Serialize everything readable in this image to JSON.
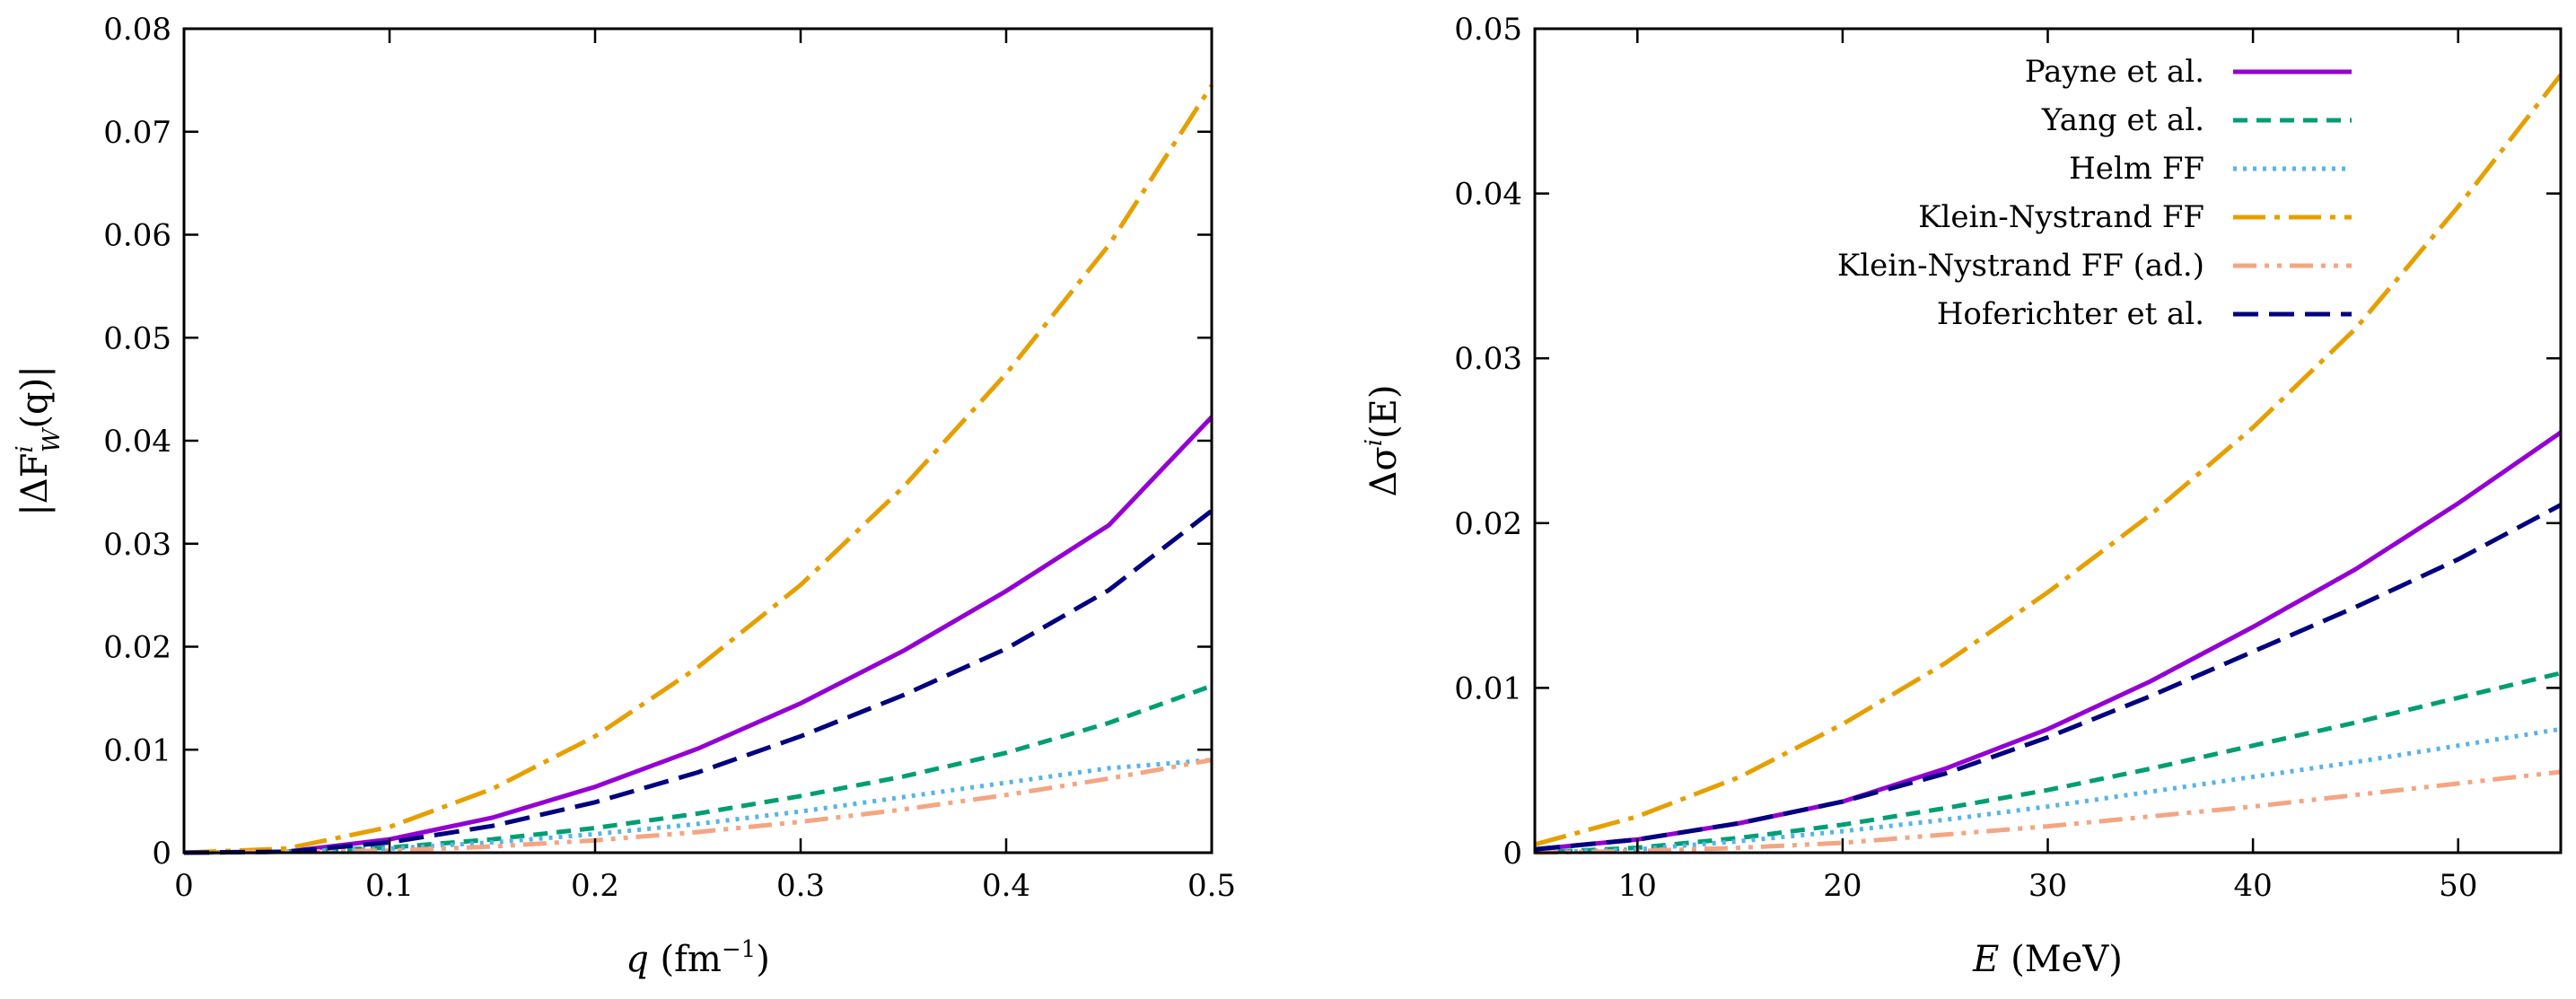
{
  "chart_data": [
    {
      "type": "line",
      "title": "",
      "xlabel": "q (fm⁻¹)",
      "ylabel": "|ΔF_W^i(q)|",
      "xlabel_parts": {
        "var": "q",
        "unit": "(fm",
        "sup": "−1",
        "close": ")"
      },
      "ylabel_parts": {
        "pre": "|ΔF",
        "sup": "i",
        "sub": "W",
        "post": "(q)|"
      },
      "xlim": [
        0,
        0.5
      ],
      "ylim": [
        0,
        0.08
      ],
      "x_ticks": [
        0,
        0.1,
        0.2,
        0.3,
        0.4,
        0.5
      ],
      "x_tick_labels": [
        "0",
        "0.1",
        "0.2",
        "0.3",
        "0.4",
        "0.5"
      ],
      "y_ticks": [
        0,
        0.01,
        0.02,
        0.03,
        0.04,
        0.05,
        0.06,
        0.07,
        0.08
      ],
      "y_tick_labels": [
        "0",
        "0.01",
        "0.02",
        "0.03",
        "0.04",
        "0.05",
        "0.06",
        "0.07",
        "0.08"
      ],
      "grid": false,
      "series": [
        {
          "name": "Payne et al.",
          "x": [
            0,
            0.05,
            0.1,
            0.15,
            0.2,
            0.25,
            0.3,
            0.35,
            0.4,
            0.45,
            0.5
          ],
          "values": [
            0,
            0.0001,
            0.0013,
            0.0034,
            0.0064,
            0.0101,
            0.0145,
            0.0196,
            0.0254,
            0.0318,
            0.0423
          ]
        },
        {
          "name": "Yang et al.",
          "x": [
            0,
            0.05,
            0.1,
            0.15,
            0.2,
            0.25,
            0.3,
            0.35,
            0.4,
            0.45,
            0.5
          ],
          "values": [
            0,
            0.0001,
            0.0005,
            0.0013,
            0.0024,
            0.0038,
            0.0055,
            0.0074,
            0.0097,
            0.0126,
            0.0162
          ]
        },
        {
          "name": "Helm FF",
          "x": [
            0,
            0.05,
            0.1,
            0.15,
            0.2,
            0.25,
            0.3,
            0.35,
            0.4,
            0.45,
            0.5
          ],
          "values": [
            0,
            0.0001,
            0.0004,
            0.001,
            0.0018,
            0.0028,
            0.004,
            0.0054,
            0.0068,
            0.0082,
            0.009
          ]
        },
        {
          "name": "Klein-Nystrand FF",
          "x": [
            0,
            0.05,
            0.1,
            0.15,
            0.2,
            0.25,
            0.3,
            0.35,
            0.4,
            0.45,
            0.5
          ],
          "values": [
            0,
            0.0004,
            0.0025,
            0.0062,
            0.0113,
            0.018,
            0.026,
            0.0355,
            0.0465,
            0.059,
            0.0745
          ]
        },
        {
          "name": "Klein-Nystrand FF (ad.)",
          "x": [
            0,
            0.05,
            0.1,
            0.15,
            0.2,
            0.25,
            0.3,
            0.35,
            0.4,
            0.45,
            0.5
          ],
          "values": [
            0,
            0.0001,
            0.0002,
            0.0006,
            0.0012,
            0.002,
            0.003,
            0.0042,
            0.0056,
            0.0072,
            0.009
          ]
        },
        {
          "name": "Hoferichter et al.",
          "x": [
            0,
            0.05,
            0.1,
            0.15,
            0.2,
            0.25,
            0.3,
            0.35,
            0.4,
            0.45,
            0.5
          ],
          "values": [
            0,
            0.0001,
            0.001,
            0.0026,
            0.0049,
            0.0078,
            0.0113,
            0.0153,
            0.0198,
            0.0255,
            0.0332
          ]
        }
      ]
    },
    {
      "type": "line",
      "title": "",
      "xlabel": "E (MeV)",
      "ylabel": "Δσ^i(E)",
      "xlabel_parts": {
        "var": "E",
        "unit": "(MeV)"
      },
      "ylabel_parts": {
        "pre": "Δσ",
        "sup": "i",
        "post": "(E)"
      },
      "xlim": [
        5,
        55
      ],
      "ylim": [
        0,
        0.05
      ],
      "x_ticks": [
        10,
        20,
        30,
        40,
        50
      ],
      "x_tick_labels": [
        "10",
        "20",
        "30",
        "40",
        "50"
      ],
      "y_ticks": [
        0,
        0.01,
        0.02,
        0.03,
        0.04,
        0.05
      ],
      "y_tick_labels": [
        "0",
        "0.01",
        "0.02",
        "0.03",
        "0.04",
        "0.05"
      ],
      "grid": false,
      "legend_position": "top-right",
      "series": [
        {
          "name": "Payne et al.",
          "x": [
            5,
            10,
            15,
            20,
            25,
            30,
            35,
            40,
            45,
            50,
            55
          ],
          "values": [
            0.0002,
            0.0008,
            0.0018,
            0.0031,
            0.0051,
            0.0075,
            0.0104,
            0.0137,
            0.0172,
            0.0212,
            0.0255
          ]
        },
        {
          "name": "Yang et al.",
          "x": [
            5,
            10,
            15,
            20,
            25,
            30,
            35,
            40,
            45,
            50,
            55
          ],
          "values": [
            0,
            0.0003,
            0.0009,
            0.0017,
            0.0027,
            0.0038,
            0.0051,
            0.0065,
            0.0079,
            0.0094,
            0.0109
          ]
        },
        {
          "name": "Helm FF",
          "x": [
            5,
            10,
            15,
            20,
            25,
            30,
            35,
            40,
            45,
            50,
            55
          ],
          "values": [
            0,
            0.0002,
            0.0007,
            0.0013,
            0.002,
            0.0028,
            0.0037,
            0.0046,
            0.0055,
            0.0065,
            0.0075
          ]
        },
        {
          "name": "Klein-Nystrand FF",
          "x": [
            5,
            10,
            15,
            20,
            25,
            30,
            35,
            40,
            45,
            50,
            55
          ],
          "values": [
            0.0005,
            0.0022,
            0.0046,
            0.0078,
            0.0115,
            0.0158,
            0.0205,
            0.0258,
            0.0318,
            0.0392,
            0.0472
          ]
        },
        {
          "name": "Klein-Nystrand FF (ad.)",
          "x": [
            5,
            10,
            15,
            20,
            25,
            30,
            35,
            40,
            45,
            50,
            55
          ],
          "values": [
            0,
            0.0001,
            0.0003,
            0.0006,
            0.0011,
            0.0016,
            0.0022,
            0.0028,
            0.0035,
            0.0042,
            0.0049
          ]
        },
        {
          "name": "Hoferichter et al.",
          "x": [
            5,
            10,
            15,
            20,
            25,
            30,
            35,
            40,
            45,
            50,
            55
          ],
          "values": [
            0.0002,
            0.0008,
            0.0018,
            0.0031,
            0.0048,
            0.007,
            0.0095,
            0.0122,
            0.0149,
            0.0178,
            0.0211
          ]
        }
      ]
    }
  ],
  "series_styles": [
    {
      "name": "Payne et al.",
      "color": "#9400d3",
      "dash": "solid"
    },
    {
      "name": "Yang et al.",
      "color": "#009e73",
      "dash": "dashed"
    },
    {
      "name": "Helm FF",
      "color": "#56b4e9",
      "dash": "dotted"
    },
    {
      "name": "Klein-Nystrand FF",
      "color": "#e69f00",
      "dash": "dash-dot"
    },
    {
      "name": "Klein-Nystrand FF (ad.)",
      "color": "#f4a582",
      "dash": "dash-dot-dot"
    },
    {
      "name": "Hoferichter et al.",
      "color": "#000080",
      "dash": "long-dashed"
    }
  ]
}
